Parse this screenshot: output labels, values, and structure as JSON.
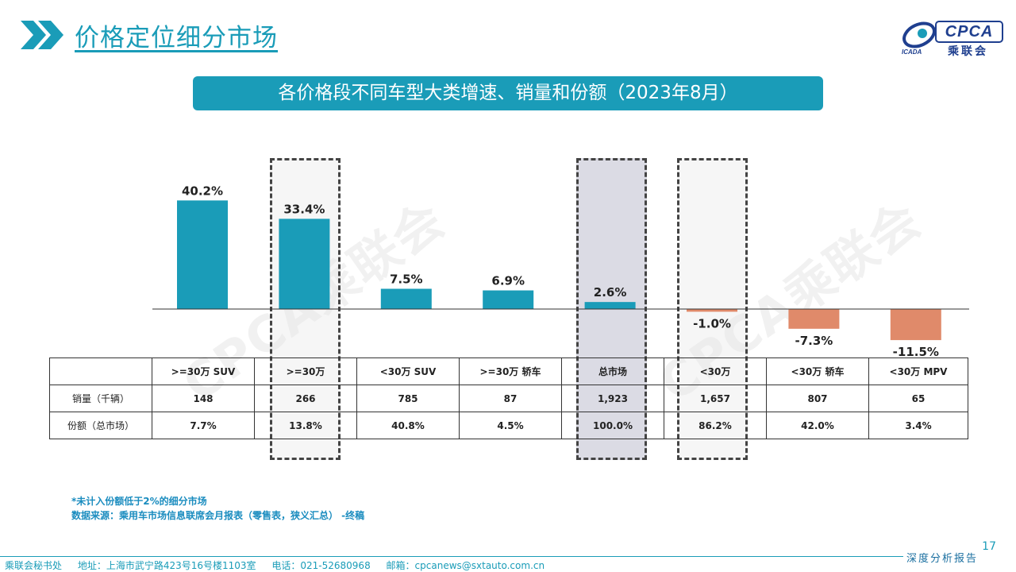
{
  "header": {
    "title": "价格定位细分市场",
    "logo_text": "CPCA",
    "logo_sub": "乘联会",
    "logo_small": "ICADA"
  },
  "banner": {
    "title": "各价格段不同车型大类增速、销量和份额（2023年8月）"
  },
  "watermark": "CPCA乘联会",
  "chart_data": {
    "type": "bar",
    "title": "各价格段不同车型大类增速、销量和份额（2023年8月）",
    "categories": [
      ">=30万 SUV",
      ">=30万",
      "<30万 SUV",
      ">=30万 轿车",
      "总市场",
      "<30万",
      "<30万 轿车",
      "<30万 MPV"
    ],
    "values": [
      40.2,
      33.4,
      7.5,
      6.9,
      2.6,
      -1.0,
      -7.3,
      -11.5
    ],
    "labels": [
      "40.2%",
      "33.4%",
      "7.5%",
      "6.9%",
      "2.6%",
      "-1.0%",
      "-7.3%",
      "-11.5%"
    ],
    "unit": "%",
    "ylim": [
      -15,
      45
    ],
    "colors": {
      "positive": "#1a9cb8",
      "negative": "#e08a6a"
    },
    "highlighted_categories": [
      ">=30万",
      "总市场",
      "<30万"
    ]
  },
  "table": {
    "headers": [
      ">=30万 SUV",
      ">=30万",
      "<30万 SUV",
      ">=30万 轿车",
      "总市场",
      "<30万",
      "<30万 轿车",
      "<30万 MPV"
    ],
    "rows": [
      {
        "label": "销量（千辆）",
        "cells": [
          "148",
          "266",
          "785",
          "87",
          "1,923",
          "1,657",
          "807",
          "65"
        ]
      },
      {
        "label": "份额（总市场）",
        "cells": [
          "7.7%",
          "13.8%",
          "40.8%",
          "4.5%",
          "100.0%",
          "86.2%",
          "42.0%",
          "3.4%"
        ]
      }
    ]
  },
  "notes": {
    "line1": "*未计入份额低于2%的细分市场",
    "line2": "数据来源：乘用车市场信息联席会月报表（零售表，狭义汇总）  -终稿"
  },
  "footer": {
    "org": "乘联会秘书处",
    "address": "地址：上海市武宁路423号16号楼1103室",
    "phone": "电话：021-52680968",
    "email": "邮箱：cpcanews@sxtauto.com.cn",
    "report_tag": "深度分析报告"
  },
  "page_number": "17"
}
